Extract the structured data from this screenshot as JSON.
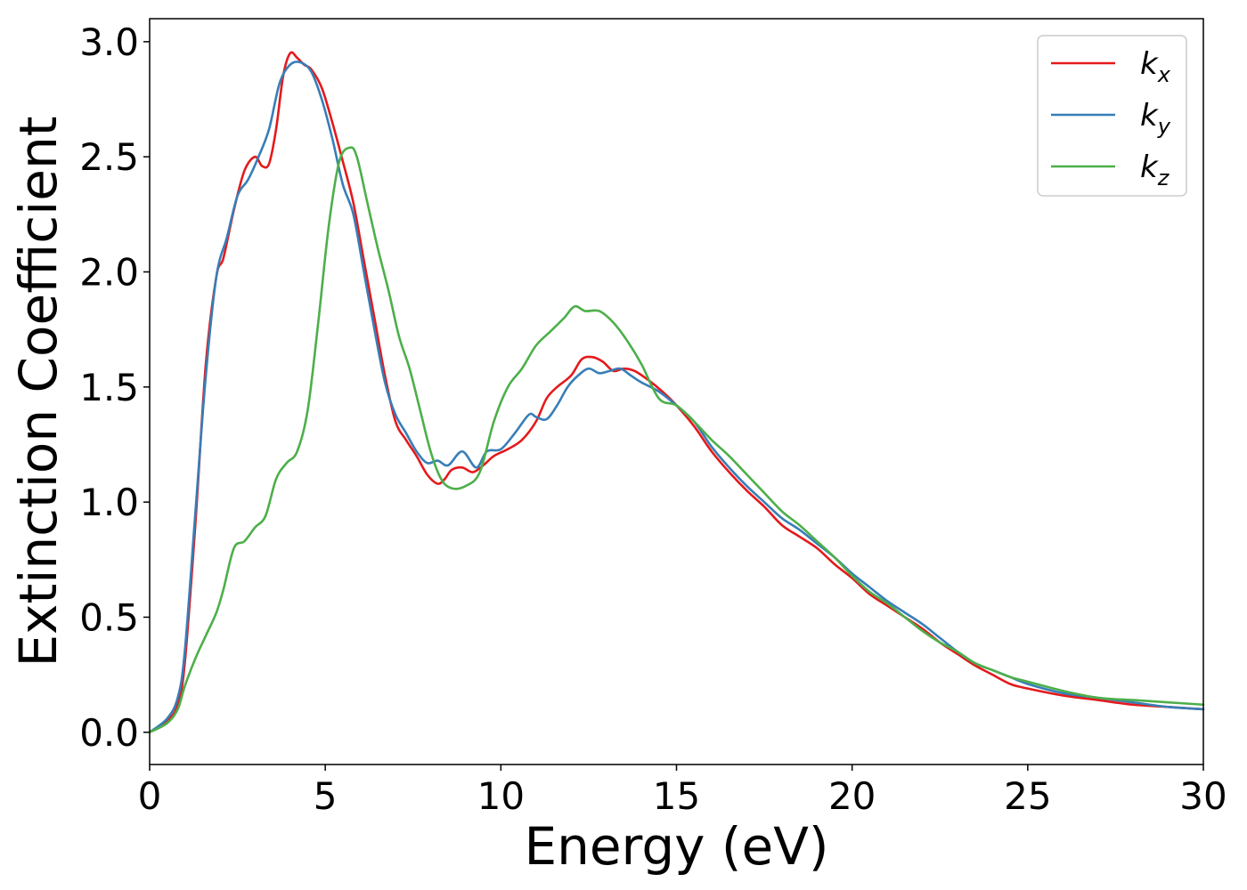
{
  "chart_data": {
    "type": "line",
    "title": "",
    "xlabel": "Energy (eV)",
    "ylabel": "Extinction Coefficient",
    "xlim": [
      0,
      30
    ],
    "ylim": [
      -0.14,
      3.1
    ],
    "xticks": [
      0,
      5,
      10,
      15,
      20,
      25,
      30
    ],
    "xtick_labels": [
      "0",
      "5",
      "10",
      "15",
      "20",
      "25",
      "30"
    ],
    "yticks": [
      0.0,
      0.5,
      1.0,
      1.5,
      2.0,
      2.5,
      3.0
    ],
    "ytick_labels": [
      "0.0",
      "0.5",
      "1.0",
      "1.5",
      "2.0",
      "2.5",
      "3.0"
    ],
    "grid": false,
    "legend_position": "top-right",
    "series": [
      {
        "name": "k",
        "subscript": "x",
        "color": "#e41a1c",
        "x": [
          0,
          0.5,
          0.8,
          1.0,
          1.3,
          1.6,
          1.9,
          2.1,
          2.4,
          2.7,
          3.0,
          3.2,
          3.4,
          3.6,
          3.8,
          4.0,
          4.2,
          4.4,
          4.6,
          4.9,
          5.2,
          5.5,
          5.8,
          6.1,
          6.4,
          6.7,
          7.0,
          7.3,
          7.6,
          7.9,
          8.2,
          8.4,
          8.6,
          8.9,
          9.2,
          9.5,
          9.8,
          10.2,
          10.6,
          11.0,
          11.3,
          11.6,
          12.0,
          12.3,
          12.6,
          12.9,
          13.2,
          13.5,
          13.8,
          14.2,
          14.6,
          15.0,
          15.5,
          16.0,
          16.5,
          17.0,
          17.5,
          18.0,
          18.5,
          19.0,
          19.5,
          20.0,
          20.5,
          21.0,
          21.5,
          22.0,
          22.5,
          23.0,
          23.5,
          24.0,
          24.5,
          25.0,
          26.0,
          27.0,
          28.0,
          29.0,
          30.0
        ],
        "y": [
          0.0,
          0.05,
          0.12,
          0.3,
          0.9,
          1.6,
          1.98,
          2.06,
          2.27,
          2.44,
          2.5,
          2.46,
          2.47,
          2.62,
          2.85,
          2.95,
          2.93,
          2.9,
          2.88,
          2.8,
          2.65,
          2.48,
          2.3,
          2.05,
          1.8,
          1.55,
          1.35,
          1.27,
          1.2,
          1.12,
          1.08,
          1.1,
          1.14,
          1.15,
          1.13,
          1.16,
          1.2,
          1.23,
          1.27,
          1.35,
          1.45,
          1.5,
          1.55,
          1.62,
          1.63,
          1.61,
          1.57,
          1.58,
          1.57,
          1.53,
          1.48,
          1.42,
          1.33,
          1.22,
          1.13,
          1.05,
          0.98,
          0.9,
          0.85,
          0.8,
          0.73,
          0.67,
          0.6,
          0.55,
          0.5,
          0.45,
          0.39,
          0.34,
          0.29,
          0.25,
          0.21,
          0.19,
          0.16,
          0.14,
          0.12,
          0.11,
          0.1
        ]
      },
      {
        "name": "k",
        "subscript": "y",
        "color": "#377eb8",
        "x": [
          0,
          0.5,
          0.8,
          1.0,
          1.3,
          1.6,
          1.9,
          2.2,
          2.5,
          2.8,
          3.1,
          3.4,
          3.7,
          4.0,
          4.3,
          4.6,
          4.9,
          5.2,
          5.5,
          5.8,
          6.1,
          6.4,
          6.7,
          7.0,
          7.3,
          7.6,
          7.9,
          8.2,
          8.5,
          8.9,
          9.3,
          9.6,
          10.0,
          10.4,
          10.8,
          11.0,
          11.3,
          11.6,
          11.9,
          12.2,
          12.5,
          12.8,
          13.1,
          13.4,
          13.7,
          14.0,
          14.5,
          15.0,
          15.5,
          16.0,
          16.5,
          17.0,
          17.5,
          18.0,
          18.5,
          19.0,
          19.5,
          20.0,
          20.5,
          21.0,
          21.5,
          22.0,
          22.5,
          23.0,
          23.5,
          24.0,
          24.5,
          25.0,
          26.0,
          27.0,
          28.0,
          29.0,
          30.0
        ],
        "y": [
          0.0,
          0.06,
          0.15,
          0.35,
          0.95,
          1.55,
          1.98,
          2.15,
          2.33,
          2.4,
          2.5,
          2.62,
          2.82,
          2.9,
          2.91,
          2.87,
          2.75,
          2.58,
          2.38,
          2.25,
          2.0,
          1.75,
          1.52,
          1.38,
          1.3,
          1.22,
          1.17,
          1.18,
          1.16,
          1.22,
          1.15,
          1.22,
          1.23,
          1.3,
          1.38,
          1.37,
          1.36,
          1.42,
          1.5,
          1.55,
          1.58,
          1.56,
          1.57,
          1.58,
          1.55,
          1.52,
          1.48,
          1.42,
          1.35,
          1.24,
          1.15,
          1.07,
          1.0,
          0.93,
          0.88,
          0.82,
          0.76,
          0.69,
          0.63,
          0.57,
          0.52,
          0.47,
          0.41,
          0.35,
          0.3,
          0.27,
          0.24,
          0.21,
          0.17,
          0.15,
          0.13,
          0.11,
          0.1
        ]
      },
      {
        "name": "k",
        "subscript": "z",
        "color": "#4daf4a",
        "x": [
          0,
          0.5,
          0.8,
          1.0,
          1.3,
          1.6,
          1.9,
          2.1,
          2.4,
          2.7,
          3.0,
          3.3,
          3.6,
          3.9,
          4.2,
          4.5,
          4.8,
          5.1,
          5.4,
          5.7,
          5.9,
          6.2,
          6.5,
          6.8,
          7.1,
          7.4,
          7.7,
          8.0,
          8.3,
          8.6,
          9.0,
          9.4,
          9.8,
          10.2,
          10.6,
          11.0,
          11.4,
          11.8,
          12.1,
          12.4,
          12.8,
          13.2,
          13.6,
          14.0,
          14.5,
          15.0,
          15.5,
          16.0,
          16.5,
          17.0,
          17.5,
          18.0,
          18.5,
          19.0,
          19.5,
          20.0,
          20.5,
          21.0,
          21.5,
          22.0,
          22.5,
          23.0,
          23.5,
          24.0,
          24.5,
          25.0,
          26.0,
          27.0,
          28.0,
          29.0,
          30.0
        ],
        "y": [
          0.0,
          0.04,
          0.1,
          0.2,
          0.32,
          0.42,
          0.52,
          0.62,
          0.8,
          0.83,
          0.89,
          0.94,
          1.1,
          1.17,
          1.22,
          1.4,
          1.78,
          2.2,
          2.48,
          2.54,
          2.5,
          2.3,
          2.1,
          1.92,
          1.72,
          1.58,
          1.4,
          1.22,
          1.1,
          1.06,
          1.07,
          1.13,
          1.35,
          1.5,
          1.58,
          1.68,
          1.74,
          1.8,
          1.85,
          1.83,
          1.83,
          1.78,
          1.7,
          1.6,
          1.45,
          1.42,
          1.35,
          1.27,
          1.2,
          1.12,
          1.04,
          0.96,
          0.9,
          0.83,
          0.76,
          0.68,
          0.61,
          0.56,
          0.5,
          0.44,
          0.39,
          0.35,
          0.3,
          0.27,
          0.24,
          0.22,
          0.18,
          0.15,
          0.14,
          0.13,
          0.12
        ]
      }
    ]
  }
}
